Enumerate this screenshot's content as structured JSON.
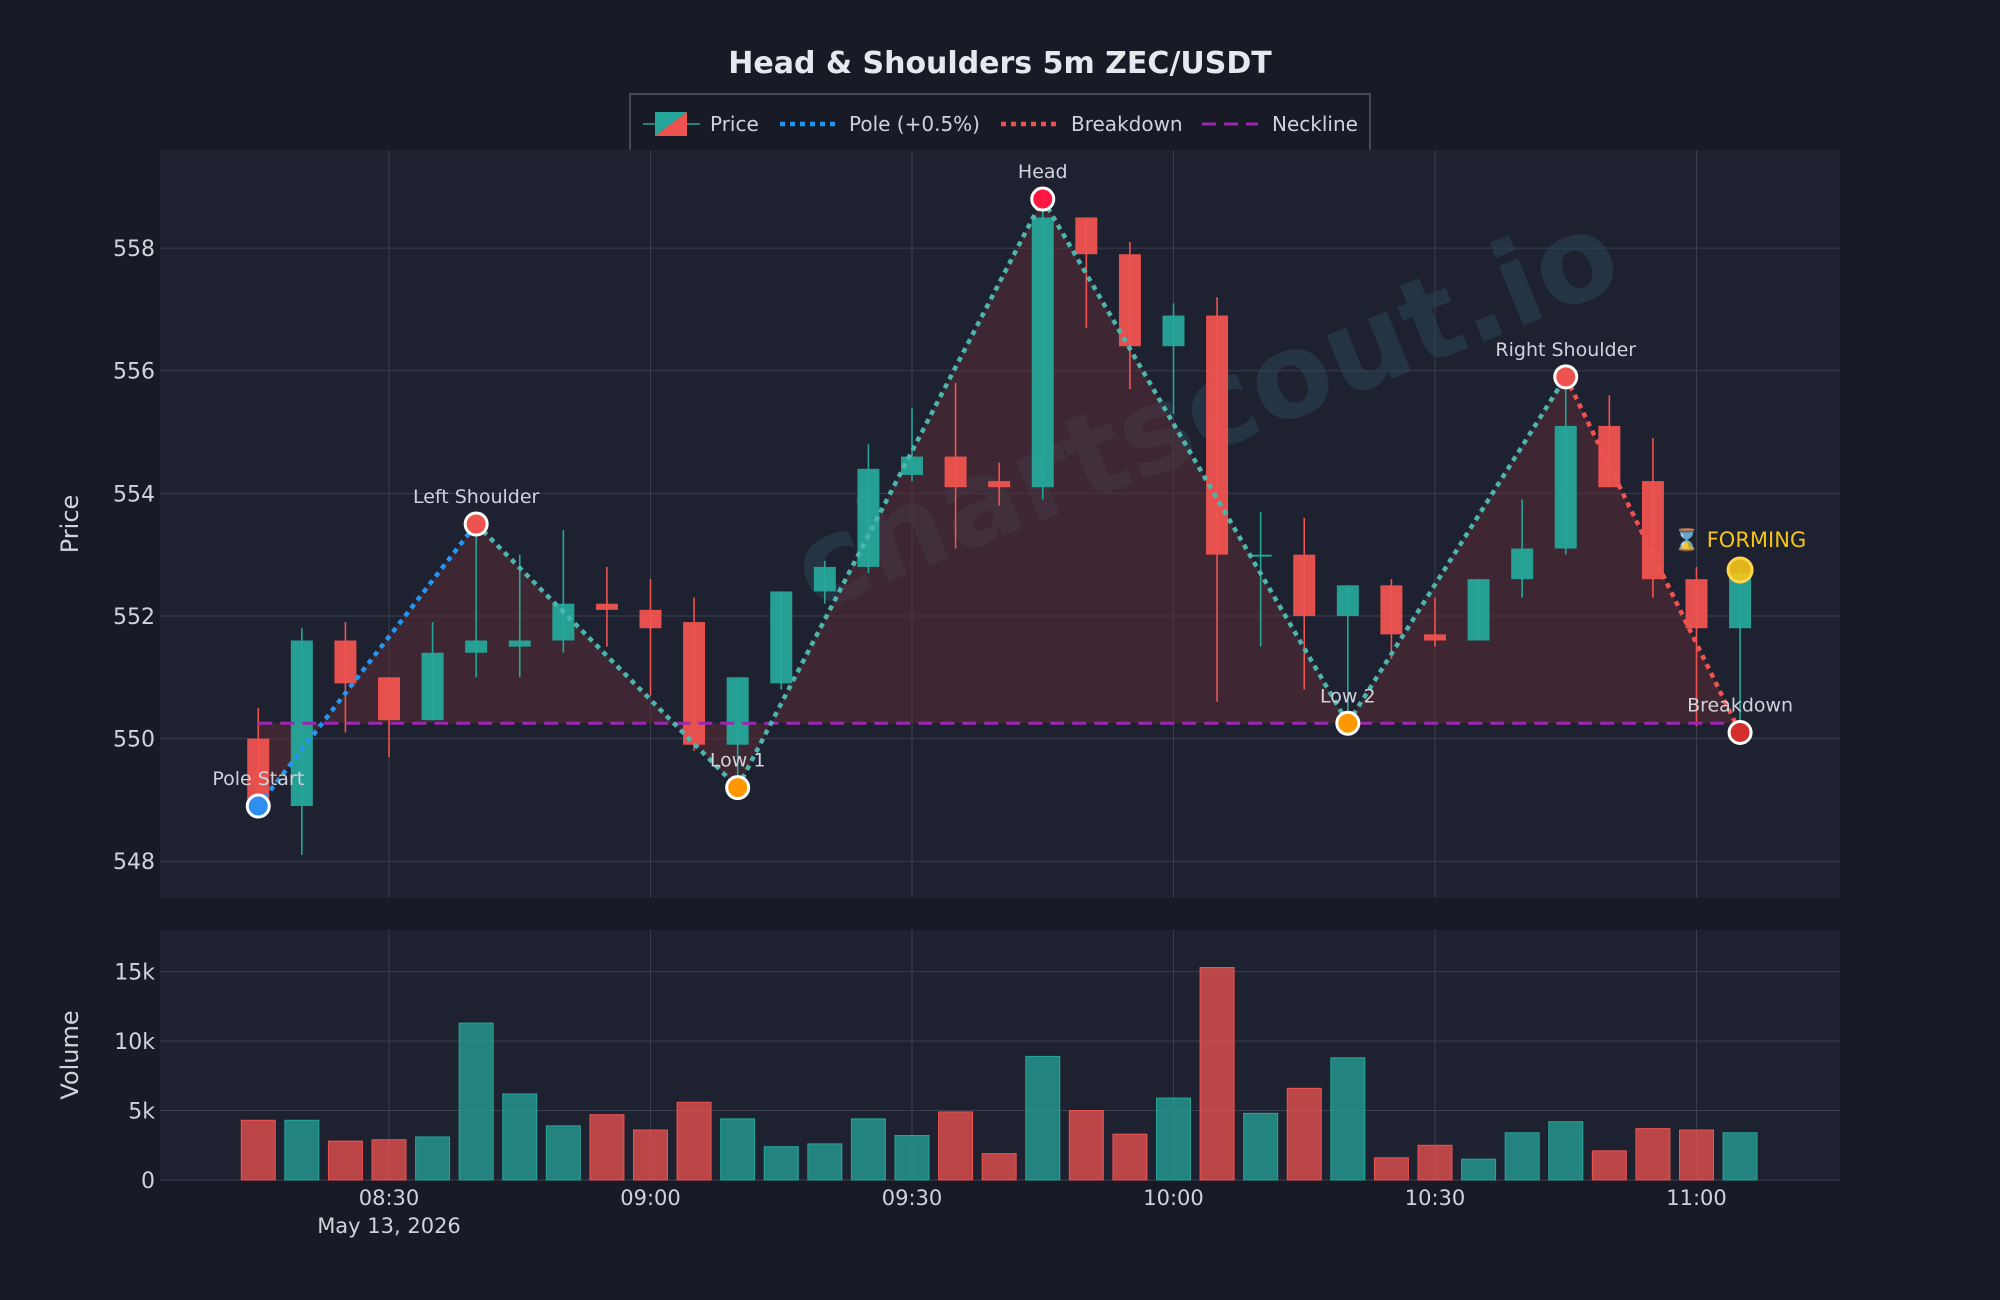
{
  "chart_data": {
    "type": "candlestick",
    "title": "Head & Shoulders 5m ZEC/USDT",
    "legend": {
      "placement": "top-center",
      "items": [
        {
          "key": "price",
          "label": "Price"
        },
        {
          "key": "pole",
          "label": "Pole (+0.5%)"
        },
        {
          "key": "breakdown",
          "label": "Breakdown"
        },
        {
          "key": "neckline",
          "label": "Neckline"
        }
      ]
    },
    "price_panel": {
      "ylabel": "Price",
      "ylim": [
        547.4,
        559.6
      ],
      "yticks": [
        548,
        550,
        552,
        554,
        556,
        558
      ],
      "ytick_labels": [
        "548",
        "550",
        "552",
        "554",
        "556",
        "558"
      ]
    },
    "volume_panel": {
      "ylabel": "Volume",
      "ylim": [
        0,
        18000
      ],
      "yticks": [
        0,
        5000,
        10000,
        15000
      ],
      "ytick_labels": [
        "0",
        "5k",
        "10k",
        "15k"
      ]
    },
    "x_axis": {
      "tick_labels": [
        "08:30",
        "09:00",
        "09:30",
        "10:00",
        "10:30",
        "11:00"
      ],
      "tick_times": [
        "08:30",
        "09:00",
        "09:30",
        "10:00",
        "10:30",
        "11:00"
      ],
      "date_label": "May 13, 2026"
    },
    "grid": true,
    "candles": [
      {
        "t": "08:15",
        "o": 550.0,
        "h": 550.5,
        "l": 548.9,
        "c": 548.9,
        "v": 4300
      },
      {
        "t": "08:20",
        "o": 548.9,
        "h": 551.8,
        "l": 548.1,
        "c": 551.6,
        "v": 4300
      },
      {
        "t": "08:25",
        "o": 551.6,
        "h": 551.9,
        "l": 550.1,
        "c": 550.9,
        "v": 2800
      },
      {
        "t": "08:30",
        "o": 551.0,
        "h": 551.0,
        "l": 549.7,
        "c": 550.3,
        "v": 2900
      },
      {
        "t": "08:35",
        "o": 550.3,
        "h": 551.9,
        "l": 550.3,
        "c": 551.4,
        "v": 3100
      },
      {
        "t": "08:40",
        "o": 551.4,
        "h": 553.5,
        "l": 551.0,
        "c": 551.6,
        "v": 11300
      },
      {
        "t": "08:45",
        "o": 551.5,
        "h": 553.0,
        "l": 551.0,
        "c": 551.6,
        "v": 6200
      },
      {
        "t": "08:50",
        "o": 551.6,
        "h": 553.4,
        "l": 551.4,
        "c": 552.2,
        "v": 3900
      },
      {
        "t": "08:55",
        "o": 552.2,
        "h": 552.8,
        "l": 551.5,
        "c": 552.1,
        "v": 4700
      },
      {
        "t": "09:00",
        "o": 552.1,
        "h": 552.6,
        "l": 550.7,
        "c": 551.8,
        "v": 3600
      },
      {
        "t": "09:05",
        "o": 551.9,
        "h": 552.3,
        "l": 549.8,
        "c": 549.9,
        "v": 5600
      },
      {
        "t": "09:10",
        "o": 549.9,
        "h": 551.0,
        "l": 549.2,
        "c": 551.0,
        "v": 4400
      },
      {
        "t": "09:15",
        "o": 550.9,
        "h": 552.4,
        "l": 550.8,
        "c": 552.4,
        "v": 2400
      },
      {
        "t": "09:20",
        "o": 552.4,
        "h": 552.9,
        "l": 552.2,
        "c": 552.8,
        "v": 2600
      },
      {
        "t": "09:25",
        "o": 552.8,
        "h": 554.8,
        "l": 552.7,
        "c": 554.4,
        "v": 4400
      },
      {
        "t": "09:30",
        "o": 554.3,
        "h": 555.4,
        "l": 554.2,
        "c": 554.6,
        "v": 3200
      },
      {
        "t": "09:35",
        "o": 554.6,
        "h": 555.8,
        "l": 553.1,
        "c": 554.1,
        "v": 4900
      },
      {
        "t": "09:40",
        "o": 554.2,
        "h": 554.5,
        "l": 553.8,
        "c": 554.1,
        "v": 1900
      },
      {
        "t": "09:45",
        "o": 554.1,
        "h": 558.8,
        "l": 553.9,
        "c": 558.5,
        "v": 8900
      },
      {
        "t": "09:50",
        "o": 558.5,
        "h": 558.5,
        "l": 556.7,
        "c": 557.9,
        "v": 5000
      },
      {
        "t": "09:55",
        "o": 557.9,
        "h": 558.1,
        "l": 555.7,
        "c": 556.4,
        "v": 3300
      },
      {
        "t": "10:00",
        "o": 556.4,
        "h": 557.1,
        "l": 555.3,
        "c": 556.9,
        "v": 5900
      },
      {
        "t": "10:05",
        "o": 556.9,
        "h": 557.2,
        "l": 550.6,
        "c": 553.0,
        "v": 15300
      },
      {
        "t": "10:10",
        "o": 553.0,
        "h": 553.7,
        "l": 551.5,
        "c": 553.0,
        "v": 4800
      },
      {
        "t": "10:15",
        "o": 553.0,
        "h": 553.6,
        "l": 550.8,
        "c": 552.0,
        "v": 6600
      },
      {
        "t": "10:20",
        "o": 552.0,
        "h": 552.5,
        "l": 550.3,
        "c": 552.5,
        "v": 8800
      },
      {
        "t": "10:25",
        "o": 552.5,
        "h": 552.6,
        "l": 551.3,
        "c": 551.7,
        "v": 1600
      },
      {
        "t": "10:30",
        "o": 551.7,
        "h": 552.3,
        "l": 551.5,
        "c": 551.6,
        "v": 2500
      },
      {
        "t": "10:35",
        "o": 551.6,
        "h": 552.6,
        "l": 551.6,
        "c": 552.6,
        "v": 1500
      },
      {
        "t": "10:40",
        "o": 552.6,
        "h": 553.9,
        "l": 552.3,
        "c": 553.1,
        "v": 3400
      },
      {
        "t": "10:45",
        "o": 553.1,
        "h": 555.8,
        "l": 553.0,
        "c": 555.1,
        "v": 4200
      },
      {
        "t": "10:50",
        "o": 555.1,
        "h": 555.6,
        "l": 554.1,
        "c": 554.1,
        "v": 2100
      },
      {
        "t": "10:55",
        "o": 554.2,
        "h": 554.9,
        "l": 552.3,
        "c": 552.6,
        "v": 3700
      },
      {
        "t": "11:00",
        "o": 552.6,
        "h": 552.8,
        "l": 550.2,
        "c": 551.8,
        "v": 3600
      },
      {
        "t": "11:05",
        "o": 551.8,
        "h": 552.8,
        "l": 550.2,
        "c": 552.7,
        "v": 3400
      }
    ],
    "neckline": 550.25,
    "pattern_points": [
      {
        "label": "Pole Start",
        "t": "08:15",
        "y": 548.9,
        "color": "#2f8ff0",
        "label_pos": "above"
      },
      {
        "label": "Left Shoulder",
        "t": "08:40",
        "y": 553.5,
        "color": "#ef5350",
        "label_pos": "above"
      },
      {
        "label": "Low 1",
        "t": "09:10",
        "y": 549.2,
        "color": "#ff9800",
        "label_pos": "above"
      },
      {
        "label": "Head",
        "t": "09:45",
        "y": 558.8,
        "color": "#ff1744",
        "label_pos": "above"
      },
      {
        "label": "Low 2",
        "t": "10:20",
        "y": 550.25,
        "color": "#ff9800",
        "label_pos": "above"
      },
      {
        "label": "Right Shoulder",
        "t": "10:45",
        "y": 555.9,
        "color": "#ef5350",
        "label_pos": "above"
      },
      {
        "label": "Breakdown",
        "t": "11:05",
        "y": 550.1,
        "color": "#d32f2f",
        "label_pos": "above"
      }
    ],
    "forming": {
      "label": "⌛ FORMING",
      "t": "11:05",
      "y": 552.75,
      "color": "#f5c518"
    },
    "watermark": "chartscout.io",
    "colors": {
      "background": "#181b25",
      "panel": "#1e2130",
      "grid": "#3a3e4e",
      "up": "#26a69a",
      "down": "#ef5350",
      "pole": "#2196f3",
      "breakdown": "#ef5350",
      "neckline": "#9c27b0",
      "zigzag": "#4db6ac",
      "text": "#d0d3dc",
      "title": "#e6e8ee",
      "forming": "#f5c518",
      "fill": "#5a2d35"
    }
  }
}
